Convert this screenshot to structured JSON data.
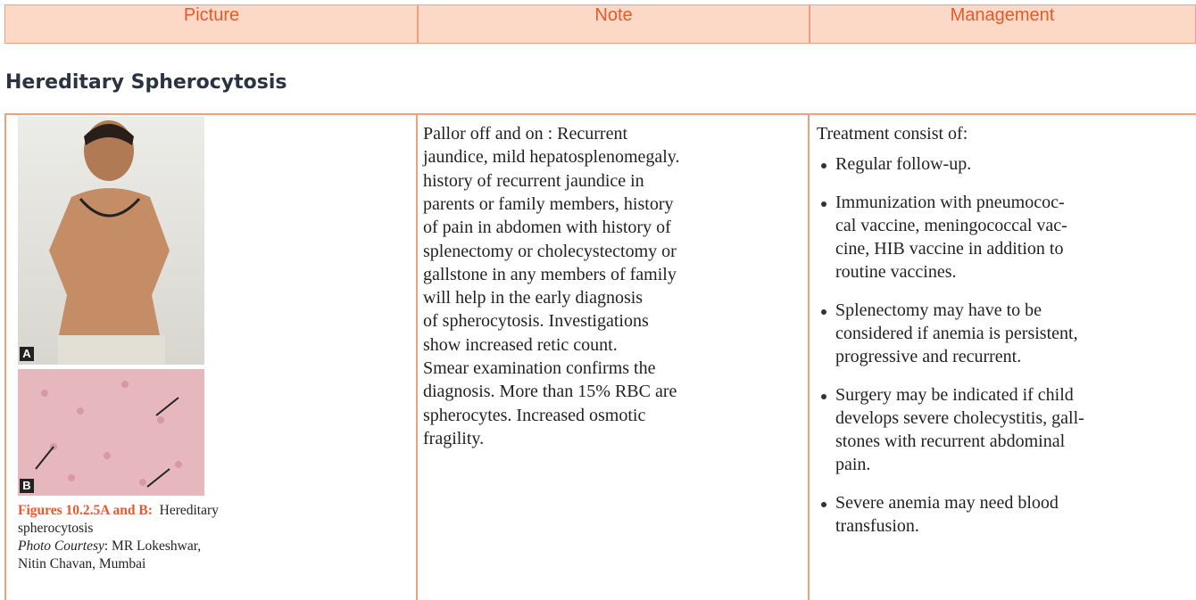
{
  "header": {
    "columns": [
      "Picture",
      "Note",
      "Management"
    ]
  },
  "section": {
    "title": "Hereditary Spherocytosis"
  },
  "picture": {
    "label_a": "A",
    "label_b": "B",
    "caption": {
      "figure": "Figures 10.2.5A and B:",
      "text": "Hereditary",
      "text_line2": "spherocytosis",
      "courtesy_label": "Photo Courtesy",
      "courtesy_text": ":  MR Lokeshwar,",
      "courtesy_line2": "Nitin Chavan, Mumbai"
    }
  },
  "note": {
    "lines": [
      "Pallor off and on : Recurrent",
      "jaundice, mild hepatosplenomegaly.",
      "history of recurrent jaundice in",
      "parents or family members, history",
      "of pain in abdomen with history of",
      "splenectomy or cholecystectomy or",
      "gallstone in any members of family",
      "will help in the early diagnosis",
      "of spherocytosis. Investigations",
      "show increased retic count.",
      "Smear examination confirms the",
      "diagnosis. More than 15% RBC are",
      "spherocytes. Increased osmotic",
      "fragility."
    ]
  },
  "management": {
    "intro": "Treatment consist of:",
    "items": [
      [
        "Regular follow-up."
      ],
      [
        "Immunization with pneumococ-",
        "cal vaccine, meningococcal vac-",
        "cine, HIB vaccine in addition to",
        "routine vaccines."
      ],
      [
        "Splenectomy may have to be",
        "considered if anemia is persistent,",
        "progressive and recurrent."
      ],
      [
        "Surgery may be indicated if child",
        "develops severe cholecystitis, gall-",
        "stones with recurrent abdominal",
        "pain."
      ],
      [
        "Severe anemia may need blood",
        "transfusion."
      ]
    ]
  }
}
